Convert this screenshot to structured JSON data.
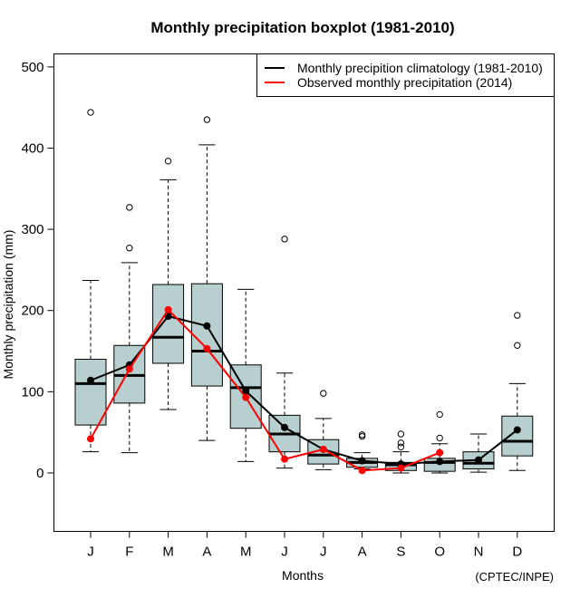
{
  "chart_data": {
    "type": "boxplot",
    "title": "Monthly precipitation boxplot (1981-2010)",
    "xlabel": "Months",
    "ylabel": "Monthly precipitation (mm)",
    "ylim": [
      -72,
      516
    ],
    "yticks": [
      0,
      100,
      200,
      300,
      400,
      500
    ],
    "ytick_labels": [
      "0",
      "100",
      "200",
      "300",
      "400",
      "500"
    ],
    "categories": [
      "J",
      "F",
      "M",
      "A",
      "M",
      "J",
      "J",
      "A",
      "S",
      "O",
      "N",
      "D"
    ],
    "box_fill": "#b7cfcf",
    "boxes": [
      {
        "month": "J",
        "whisker_low": 26,
        "q1": 59,
        "median": 110,
        "q3": 140,
        "whisker_high": 237,
        "outliers": [
          444
        ]
      },
      {
        "month": "F",
        "whisker_low": 25,
        "q1": 86,
        "median": 120,
        "q3": 157,
        "whisker_high": 259,
        "outliers": [
          277,
          327
        ]
      },
      {
        "month": "M",
        "whisker_low": 78,
        "q1": 135,
        "median": 167,
        "q3": 232,
        "whisker_high": 361,
        "outliers": [
          384
        ]
      },
      {
        "month": "A",
        "whisker_low": 40,
        "q1": 107,
        "median": 150,
        "q3": 233,
        "whisker_high": 404,
        "outliers": [
          435
        ]
      },
      {
        "month": "M",
        "whisker_low": 14,
        "q1": 55,
        "median": 105,
        "q3": 133,
        "whisker_high": 226,
        "outliers": []
      },
      {
        "month": "J",
        "whisker_low": 6,
        "q1": 26,
        "median": 48,
        "q3": 71,
        "whisker_high": 123,
        "outliers": [
          288
        ]
      },
      {
        "month": "J",
        "whisker_low": 4,
        "q1": 11,
        "median": 22,
        "q3": 41,
        "whisker_high": 67,
        "outliers": [
          98
        ]
      },
      {
        "month": "A",
        "whisker_low": 5,
        "q1": 7,
        "median": 13,
        "q3": 18,
        "whisker_high": 25,
        "outliers": [
          45,
          47
        ]
      },
      {
        "month": "S",
        "whisker_low": 0,
        "q1": 3,
        "median": 10,
        "q3": 13,
        "whisker_high": 26,
        "outliers": [
          32,
          37,
          48
        ]
      },
      {
        "month": "O",
        "whisker_low": 0,
        "q1": 2,
        "median": 13,
        "q3": 18,
        "whisker_high": 36,
        "outliers": [
          43,
          72
        ]
      },
      {
        "month": "N",
        "whisker_low": 1,
        "q1": 5,
        "median": 12,
        "q3": 26,
        "whisker_high": 48,
        "outliers": []
      },
      {
        "month": "D",
        "whisker_low": 3,
        "q1": 21,
        "median": 39,
        "q3": 70,
        "whisker_high": 110,
        "outliers": [
          157,
          194
        ]
      }
    ],
    "series": [
      {
        "name": "Monthly precipition climatology (1981-2010)",
        "color": "#000000",
        "values": [
          114,
          133,
          193,
          181,
          101,
          56,
          29,
          15,
          11,
          14,
          16,
          53
        ]
      },
      {
        "name": "Observed monthly precipitation (2014)",
        "color": "#ff0000",
        "values": [
          42,
          128,
          201,
          153,
          93,
          17,
          29,
          3,
          6,
          25,
          null,
          null
        ]
      }
    ],
    "legend_position": "top-right",
    "annotation": "(CPTEC/INPE)",
    "grid": false
  }
}
